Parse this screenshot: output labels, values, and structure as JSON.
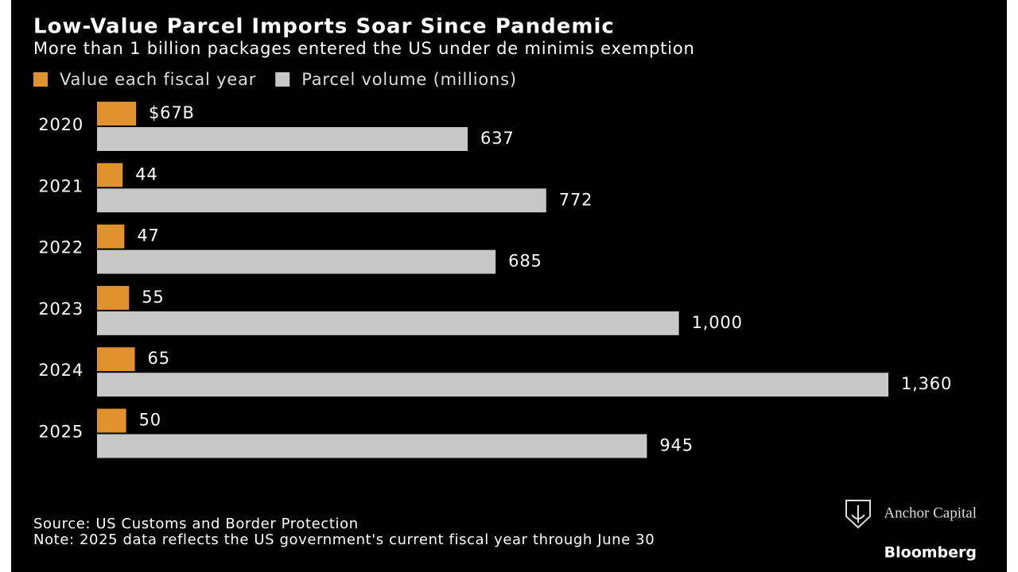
{
  "chart_data": {
    "type": "bar",
    "orientation": "horizontal",
    "title": "Low-Value Parcel Imports Soar Since Pandemic",
    "subtitle": "More than 1 billion packages entered the US under de minimis exemption",
    "categories": [
      "2020",
      "2021",
      "2022",
      "2023",
      "2024",
      "2025"
    ],
    "series": [
      {
        "name": "Value each fiscal year",
        "color": "#e0922f",
        "values": [
          67,
          44,
          47,
          55,
          65,
          50
        ],
        "value_labels": [
          "$67B",
          "44",
          "47",
          "55",
          "65",
          "50"
        ]
      },
      {
        "name": "Parcel volume (millions)",
        "color": "#c8c8c8",
        "values": [
          637,
          772,
          685,
          1000,
          1360,
          945
        ],
        "value_labels": [
          "637",
          "772",
          "685",
          "1,000",
          "1,360",
          "945"
        ]
      }
    ],
    "source": "Source: US Customs and Border Protection",
    "note": "Note: 2025 data reflects the US government's current fiscal year through June 30"
  },
  "branding": {
    "partner": "Anchor Capital",
    "publisher": "Bloomberg"
  }
}
